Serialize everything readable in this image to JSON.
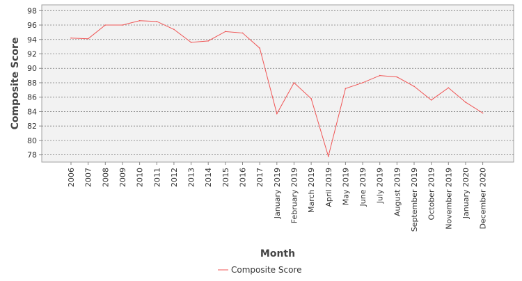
{
  "chart_data": {
    "type": "line",
    "title": "",
    "xlabel": "Month",
    "ylabel": "Composite Score",
    "ylim": [
      77,
      98.8
    ],
    "yticks": [
      78,
      80,
      82,
      84,
      86,
      88,
      90,
      92,
      94,
      96,
      98
    ],
    "grid": true,
    "legend_placement": "bottom-center",
    "categories": [
      "2006",
      "2007",
      "2008",
      "2009",
      "2010",
      "2011",
      "2012",
      "2013",
      "2014",
      "2015",
      "2016",
      "2017",
      "January 2019",
      "February 2019",
      "March 2019",
      "April 2019",
      "May 2019",
      "June 2019",
      "July 2019",
      "August 2019",
      "September 2019",
      "October 2019",
      "November 2019",
      "January 2020",
      "December 2020"
    ],
    "series": [
      {
        "name": "Composite Score",
        "color": "#f05454",
        "values": [
          94.2,
          94.1,
          96.0,
          96.0,
          96.6,
          96.5,
          95.4,
          93.6,
          93.8,
          95.1,
          94.9,
          92.8,
          83.7,
          88.0,
          85.8,
          77.8,
          87.2,
          88.0,
          89.0,
          88.8,
          87.5,
          85.6,
          87.3,
          85.3,
          83.8
        ]
      }
    ]
  }
}
